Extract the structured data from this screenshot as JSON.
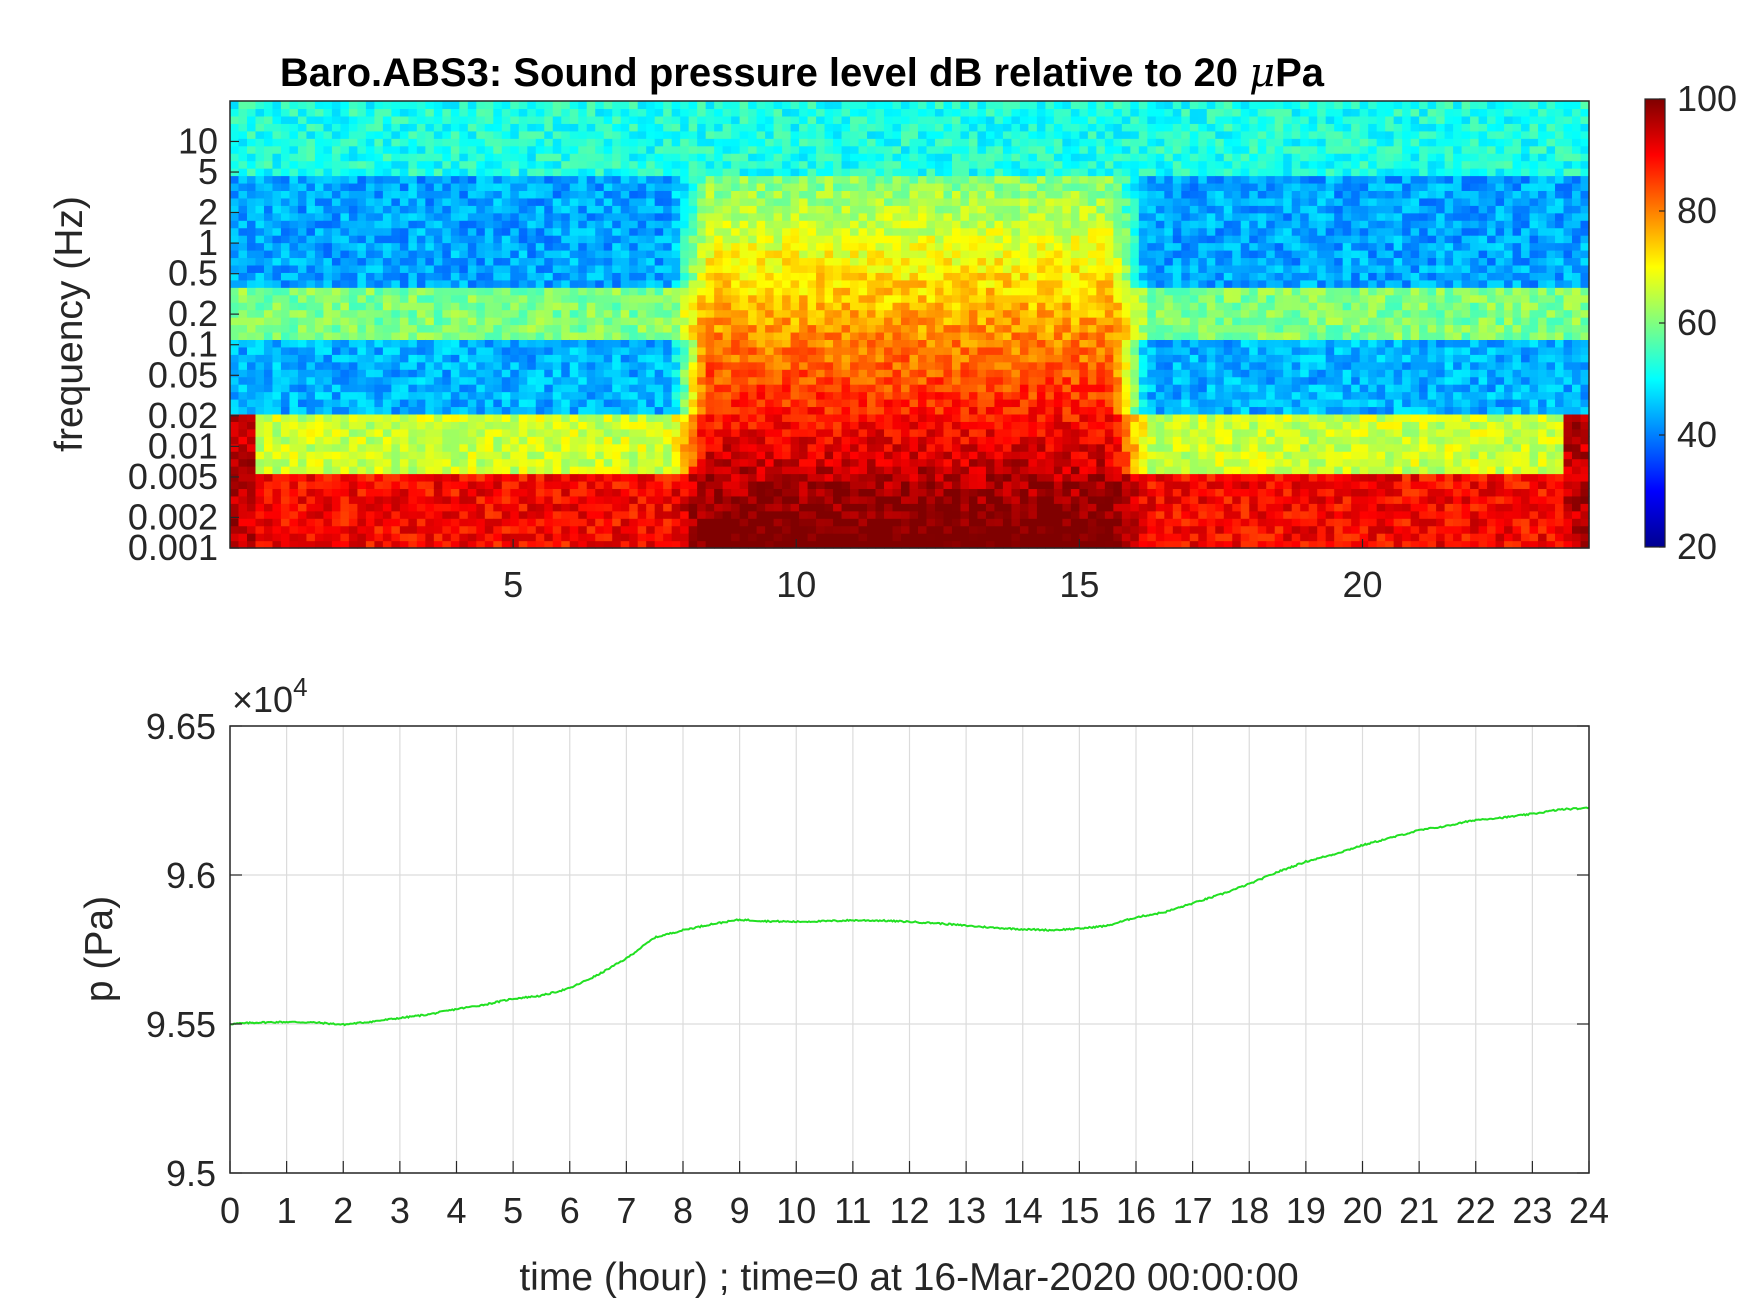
{
  "chart_data": [
    {
      "type": "heatmap",
      "title_prefix": "Baro.ABS3: Sound pressure level dB relative to 20 ",
      "title_mu": "μ",
      "title_suffix": "Pa",
      "xlabel": "",
      "ylabel": "frequency (Hz)",
      "x_unit": "hour",
      "xlim": [
        0,
        24
      ],
      "xticks": [
        5,
        10,
        15,
        20
      ],
      "xtick_labels": [
        "5",
        "10",
        "15",
        "20"
      ],
      "y_scale": "log",
      "ylim": [
        0.001,
        25
      ],
      "yticks": [
        0.001,
        0.002,
        0.005,
        0.01,
        0.02,
        0.05,
        0.1,
        0.2,
        0.5,
        1,
        2,
        5,
        10
      ],
      "ytick_labels": [
        "0.001",
        "0.002",
        "0.005",
        "0.01",
        "0.02",
        "0.05",
        "0.1",
        "0.2",
        "0.5",
        "1",
        "2",
        "5",
        "10"
      ],
      "colormap": "jet",
      "clim": [
        20,
        100
      ],
      "colorbar_ticks": [
        20,
        40,
        60,
        80,
        100
      ],
      "colorbar_tick_labels": [
        "20",
        "40",
        "60",
        "80",
        "100"
      ],
      "level_bands_db": [
        {
          "freq_range_hz": [
            5,
            25
          ],
          "level_db": 52
        },
        {
          "freq_range_hz": [
            0.4,
            5
          ],
          "level_db": 43
        },
        {
          "freq_range_hz": [
            0.12,
            0.4
          ],
          "level_db": 60
        },
        {
          "freq_range_hz": [
            0.02,
            0.12
          ],
          "level_db": 44
        },
        {
          "freq_range_hz": [
            0.005,
            0.02
          ],
          "level_db": 66
        },
        {
          "freq_range_hz": [
            0.001,
            0.005
          ],
          "level_db": 90
        }
      ],
      "activity_window_hours": [
        7.8,
        16.2
      ],
      "activity_level_db": 80
    },
    {
      "type": "line",
      "title": "",
      "xlabel": "time (hour) ; time=0 at 16-Mar-2020 00:00:00",
      "ylabel": "p (Pa)",
      "exponent_label": "×10",
      "exponent_power": "4",
      "xlim": [
        0,
        24
      ],
      "ylim": [
        95000,
        96500
      ],
      "xticks": [
        0,
        1,
        2,
        3,
        4,
        5,
        6,
        7,
        8,
        9,
        10,
        11,
        12,
        13,
        14,
        15,
        16,
        17,
        18,
        19,
        20,
        21,
        22,
        23,
        24
      ],
      "xtick_labels": [
        "0",
        "1",
        "2",
        "3",
        "4",
        "5",
        "6",
        "7",
        "8",
        "9",
        "10",
        "11",
        "12",
        "13",
        "14",
        "15",
        "16",
        "17",
        "18",
        "19",
        "20",
        "21",
        "22",
        "23",
        "24"
      ],
      "yticks": [
        95000,
        95500,
        96000,
        96500
      ],
      "ytick_labels": [
        "9.5",
        "9.55",
        "9.6",
        "9.65"
      ],
      "grid": true,
      "series": [
        {
          "color": "#22e022",
          "x": [
            0,
            0.5,
            1,
            1.5,
            2,
            2.5,
            3,
            3.5,
            4,
            4.5,
            5,
            5.5,
            6,
            6.5,
            7,
            7.5,
            8,
            8.5,
            9,
            9.5,
            10,
            10.5,
            11,
            11.5,
            12,
            12.5,
            13,
            13.5,
            14,
            14.5,
            15,
            15.5,
            16,
            16.5,
            17,
            17.5,
            18,
            18.5,
            19,
            19.5,
            20,
            20.5,
            21,
            21.5,
            22,
            22.5,
            23,
            23.5,
            24
          ],
          "y": [
            95500,
            95505,
            95507,
            95505,
            95498,
            95508,
            95520,
            95532,
            95550,
            95565,
            95585,
            95595,
            95620,
            95665,
            95720,
            95790,
            95815,
            95835,
            95850,
            95845,
            95843,
            95845,
            95848,
            95847,
            95843,
            95838,
            95830,
            95823,
            95818,
            95815,
            95820,
            95830,
            95858,
            95875,
            95905,
            95935,
            95970,
            96010,
            96045,
            96070,
            96100,
            96125,
            96150,
            96165,
            96185,
            96193,
            96205,
            96220,
            96225
          ]
        }
      ]
    }
  ]
}
